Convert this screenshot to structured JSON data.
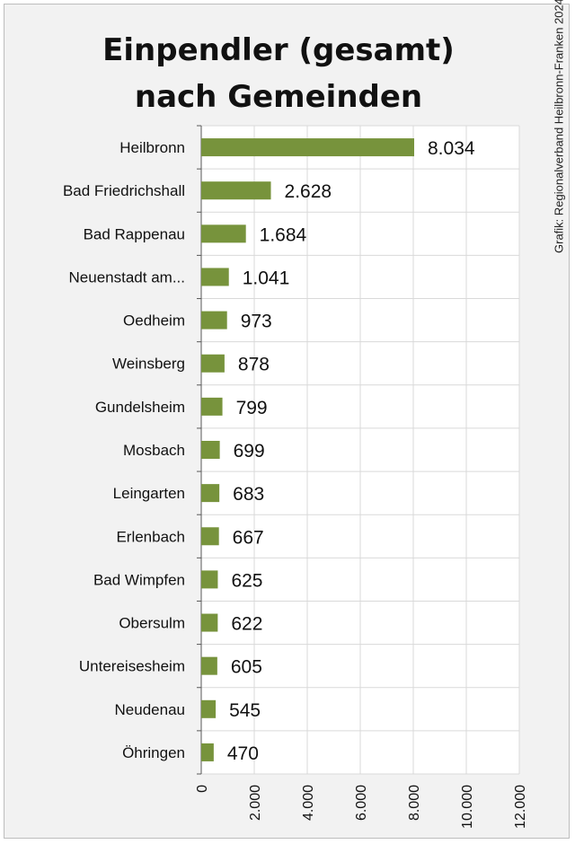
{
  "chart_data": {
    "type": "bar",
    "orientation": "horizontal",
    "title_lines": [
      "Einpendler (gesamt)",
      "nach Gemeinden"
    ],
    "source": "Grafik: Regionalverband Heilbronn-Franken 2024",
    "categories": [
      "Heilbronn",
      "Bad Friedrichshall",
      "Bad Rappenau",
      "Neuenstadt am...",
      "Oedheim",
      "Weinsberg",
      "Gundelsheim",
      "Mosbach",
      "Leingarten",
      "Erlenbach",
      "Bad Wimpfen",
      "Obersulm",
      "Untereisesheim",
      "Neudenau",
      "Öhringen"
    ],
    "values": [
      8034,
      2628,
      1684,
      1041,
      973,
      878,
      799,
      699,
      683,
      667,
      625,
      622,
      605,
      545,
      470
    ],
    "value_labels": [
      "8.034",
      "2.628",
      "1.684",
      "1.041",
      "973",
      "878",
      "799",
      "699",
      "683",
      "667",
      "625",
      "622",
      "605",
      "545",
      "470"
    ],
    "xlim": [
      0,
      12000
    ],
    "xticks": [
      0,
      2000,
      4000,
      6000,
      8000,
      10000,
      12000
    ],
    "xtick_labels": [
      "0",
      "2.000",
      "4.000",
      "6.000",
      "8.000",
      "10.000",
      "12.000"
    ],
    "bar_color": "#77933c",
    "grid": true
  }
}
